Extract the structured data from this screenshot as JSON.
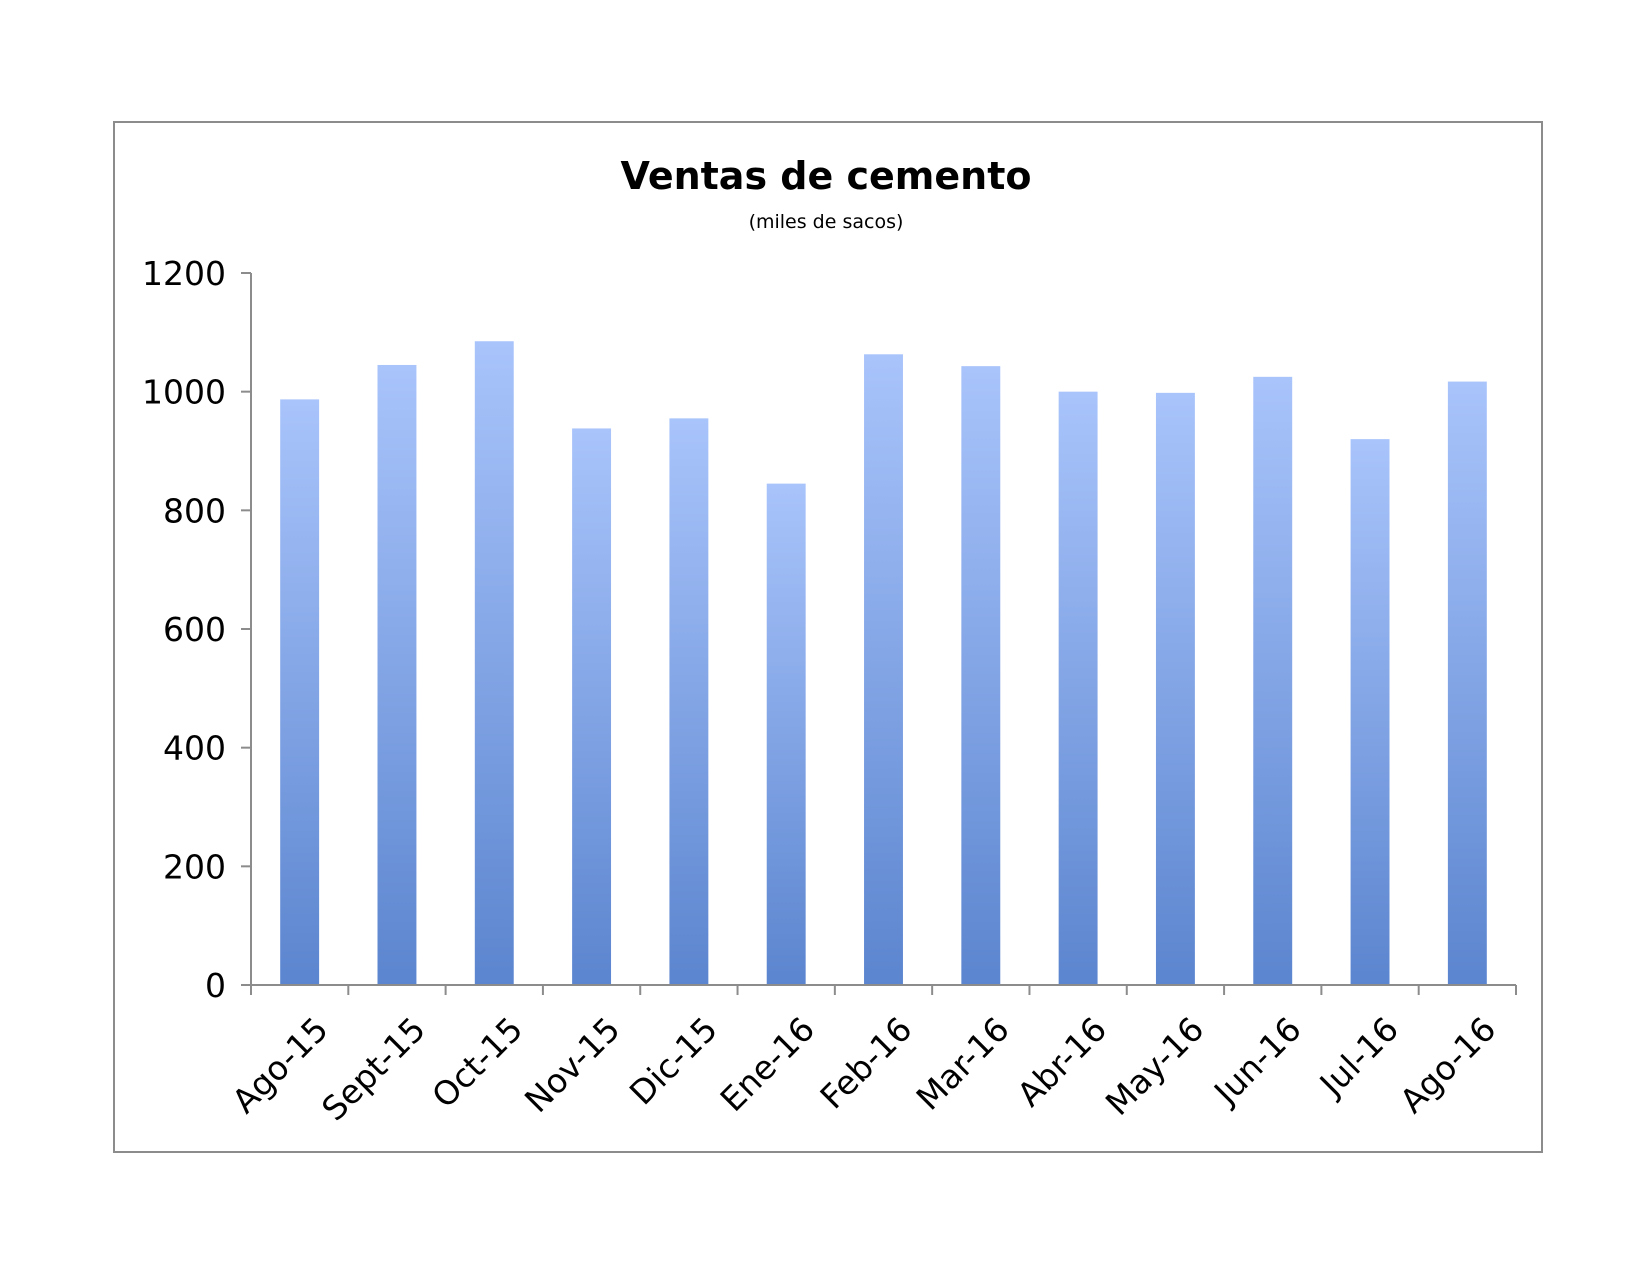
{
  "chart_data": {
    "type": "bar",
    "title": "Ventas de cemento",
    "subtitle": "(miles de sacos)",
    "xlabel": "",
    "ylabel": "",
    "categories": [
      "Ago-15",
      "Sept-15",
      "Oct-15",
      "Nov-15",
      "Dic-15",
      "Ene-16",
      "Feb-16",
      "Mar-16",
      "Abr-16",
      "May-16",
      "Jun-16",
      "Jul-16",
      "Ago-16"
    ],
    "values": [
      987,
      1045,
      1085,
      938,
      955,
      845,
      1063,
      1043,
      1000,
      998,
      1025,
      920,
      1017
    ],
    "ylim": [
      0,
      1200
    ],
    "yticks": [
      0,
      200,
      400,
      600,
      800,
      1000,
      1200
    ],
    "grid": false,
    "legend": "none",
    "colors": {
      "bar_top": "#a9c4fb",
      "bar_bottom": "#5b85cf",
      "axis": "#8c8c8c"
    }
  }
}
